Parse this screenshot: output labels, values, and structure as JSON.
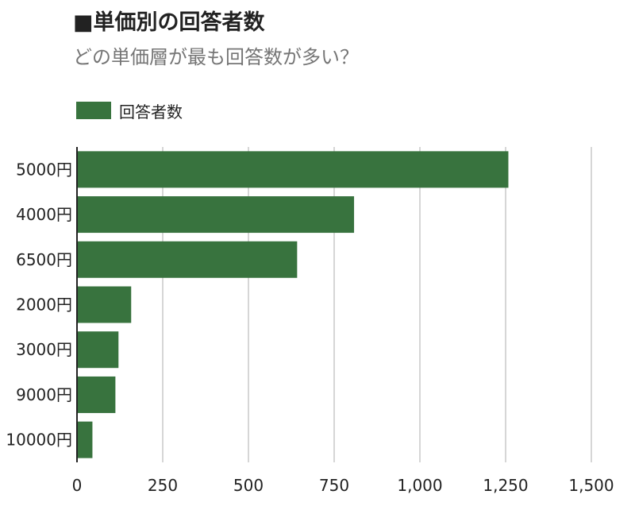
{
  "title": "■単価別の回答者数",
  "subtitle": "どの単価層が最も回答数が多い？",
  "legend": {
    "label": "回答者数",
    "color": "#38733e"
  },
  "chart_data": {
    "type": "bar",
    "orientation": "horizontal",
    "categories": [
      "5000円",
      "4000円",
      "6500円",
      "2000円",
      "3000円",
      "9000円",
      "10000円"
    ],
    "series": [
      {
        "name": "回答者数",
        "values": [
          1258,
          808,
          642,
          158,
          121,
          112,
          45
        ],
        "color": "#38733e"
      }
    ],
    "xlim": [
      0,
      1500
    ],
    "xticks": [
      0,
      250,
      500,
      750,
      1000,
      1250,
      1500
    ],
    "xtick_labels": [
      "0",
      "250",
      "500",
      "750",
      "1,000",
      "1,250",
      "1,500"
    ],
    "grid": "vertical",
    "legend_position": "top-left"
  }
}
